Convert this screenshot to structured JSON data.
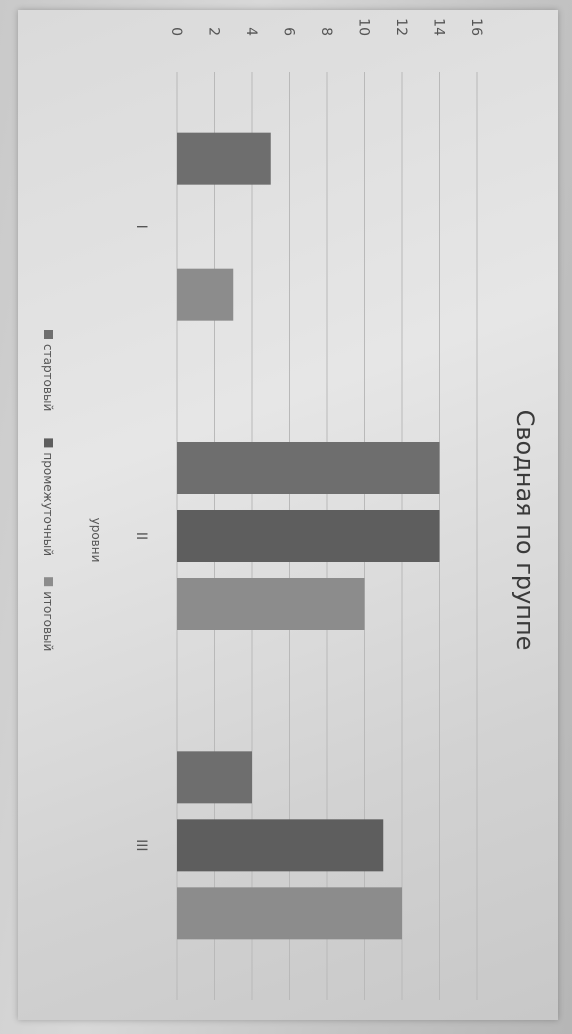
{
  "chart_data": {
    "type": "bar",
    "title": "Сводная по группе",
    "xlabel": "уровни",
    "ylabel": "",
    "categories": [
      "I",
      "II",
      "III"
    ],
    "series": [
      {
        "name": "стартовый",
        "values": [
          5,
          14,
          4
        ],
        "color": "#6e6e6e"
      },
      {
        "name": "промежуточный",
        "values": [
          0,
          14,
          11
        ],
        "color": "#5e5e5e"
      },
      {
        "name": "итоговый",
        "values": [
          3,
          10,
          12
        ],
        "color": "#8c8c8c"
      }
    ],
    "yticks": [
      0,
      2,
      4,
      6,
      8,
      10,
      12,
      14,
      16
    ],
    "ylim": [
      0,
      16
    ],
    "grid": true,
    "legend": "bottom"
  }
}
